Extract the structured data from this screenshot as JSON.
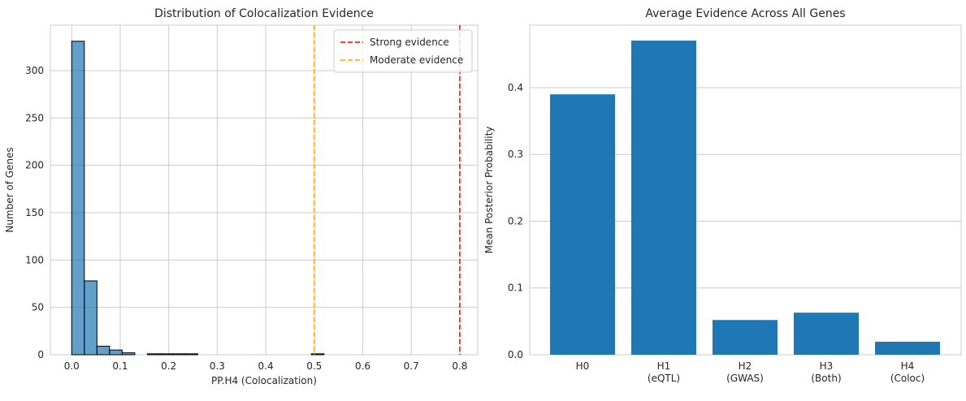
{
  "chart_data": [
    {
      "type": "histogram",
      "title": "Distribution of Colocalization Evidence",
      "xlabel": "PP.H4 (Colocalization)",
      "ylabel": "Number of Genes",
      "bins": [
        0,
        0.026,
        0.052,
        0.078,
        0.104,
        0.13,
        0.156,
        0.182,
        0.208,
        0.234,
        0.26,
        0.286,
        0.312,
        0.338,
        0.364,
        0.39,
        0.416,
        0.442,
        0.468,
        0.494,
        0.52
      ],
      "values": [
        331,
        78,
        9,
        5,
        2,
        0,
        1,
        1,
        1,
        1,
        0,
        0,
        0,
        0,
        0,
        0,
        0,
        0,
        0,
        1
      ],
      "color": "#1f77b4",
      "edgecolor": "#000000",
      "xlim": [
        -0.044,
        0.837
      ],
      "ylim": [
        0,
        348
      ],
      "xticks": [
        {
          "value": 0,
          "label": "0.0"
        },
        0.1,
        0.2,
        0.3,
        0.4,
        0.5,
        0.6,
        0.7,
        0.8
      ],
      "yticks": [
        0,
        50,
        100,
        150,
        200,
        250,
        300
      ],
      "vlines": [
        {
          "x": 0.8,
          "color": "#ff0000",
          "label": "Strong evidence"
        },
        {
          "x": 0.5,
          "color": "#ffa500",
          "label": "Moderate evidence"
        }
      ],
      "legend": "upper right",
      "grid": true
    },
    {
      "type": "bar",
      "title": "Average Evidence Across All Genes",
      "ylabel": "Mean Posterior Probability",
      "categories": [
        "H0",
        "H1\n(eQTL)",
        "H2\n(GWAS)",
        "H3\n(Both)",
        "H4\n(Coloc)"
      ],
      "values": [
        0.39,
        0.4705,
        0.052,
        0.063,
        0.0195
      ],
      "color": "#1f77b4",
      "ylim": [
        0,
        0.4936
      ],
      "yticks": [
        {
          "value": 0,
          "label": "0.0"
        },
        0.1,
        0.2,
        0.3,
        0.4
      ],
      "grid": true
    }
  ]
}
